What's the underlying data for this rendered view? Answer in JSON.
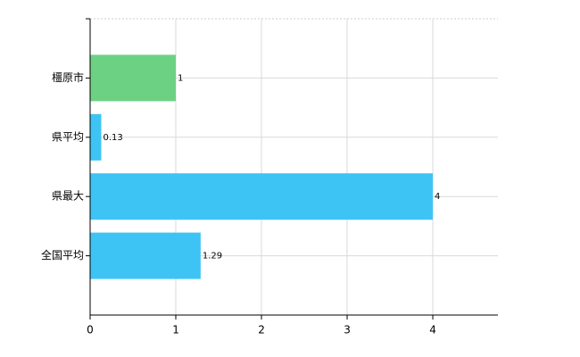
{
  "chart_data": {
    "type": "barh",
    "categories": [
      "橿原市",
      "県平均",
      "県最大",
      "全国平均"
    ],
    "values": [
      1,
      0.13,
      4,
      1.29
    ],
    "colors": [
      "#6dd184",
      "#3ec4f4",
      "#3ec4f4",
      "#3ec4f4"
    ],
    "xlim": [
      0,
      4.76
    ],
    "xticks": [
      0,
      1,
      2,
      3,
      4
    ],
    "grid": true
  }
}
